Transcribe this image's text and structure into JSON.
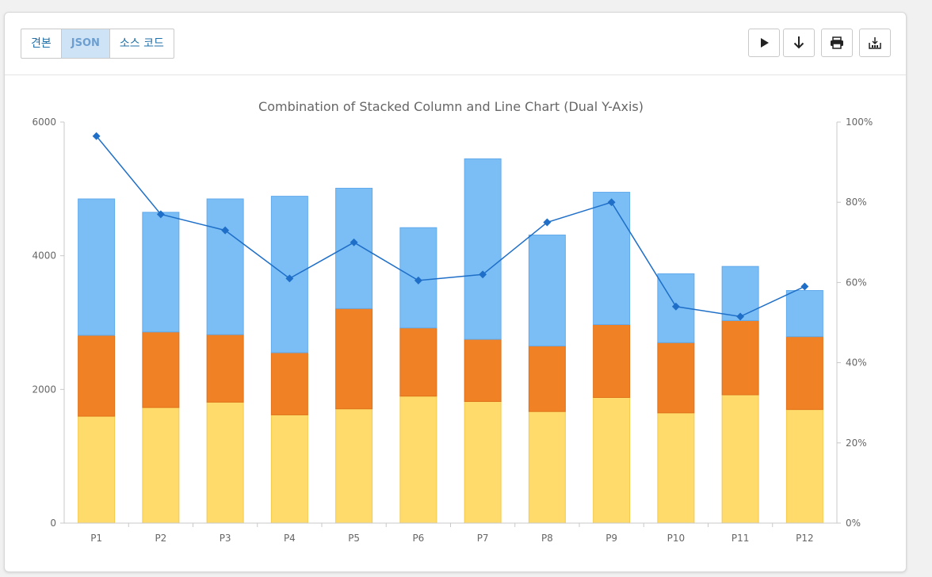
{
  "tabs": [
    {
      "label": "견본",
      "active": false
    },
    {
      "label": "JSON",
      "active": true
    },
    {
      "label": "소스 코드",
      "active": false
    }
  ],
  "tools": [
    "play-icon",
    "download-arrow-icon",
    "print-icon",
    "export-icon"
  ],
  "colors": {
    "series1": "#fedb6b",
    "series2": "#f08225",
    "series3": "#7bbef5",
    "line": "#1f6fc8"
  },
  "chart_data": {
    "type": "bar",
    "title": "Combination of Stacked Column and Line Chart (Dual Y-Axis)",
    "categories": [
      "P1",
      "P2",
      "P3",
      "P4",
      "P5",
      "P6",
      "P7",
      "P8",
      "P9",
      "P10",
      "P11",
      "P12"
    ],
    "series": [
      {
        "type": "bar",
        "stack": true,
        "values": [
          1600,
          1730,
          1810,
          1620,
          1710,
          1900,
          1820,
          1670,
          1880,
          1650,
          1920,
          1700
        ]
      },
      {
        "type": "bar",
        "stack": true,
        "values": [
          1210,
          1130,
          1010,
          930,
          1500,
          1020,
          930,
          980,
          1090,
          1050,
          1110,
          1090
        ]
      },
      {
        "type": "bar",
        "stack": true,
        "values": [
          2040,
          1790,
          2030,
          2340,
          1800,
          1500,
          2700,
          1660,
          1980,
          1030,
          810,
          690
        ]
      },
      {
        "type": "line",
        "axis": "right",
        "values": [
          96.5,
          77,
          73,
          61,
          70,
          60.5,
          62,
          75,
          80,
          54,
          51.5,
          59
        ]
      }
    ],
    "yaxis_left": {
      "min": 0,
      "max": 6000,
      "ticks": [
        "0",
        "2000",
        "4000",
        "6000"
      ]
    },
    "yaxis_right": {
      "min": 0,
      "max": 100,
      "ticks": [
        "0%",
        "20%",
        "40%",
        "60%",
        "80%",
        "100%"
      ]
    },
    "grid": false
  }
}
